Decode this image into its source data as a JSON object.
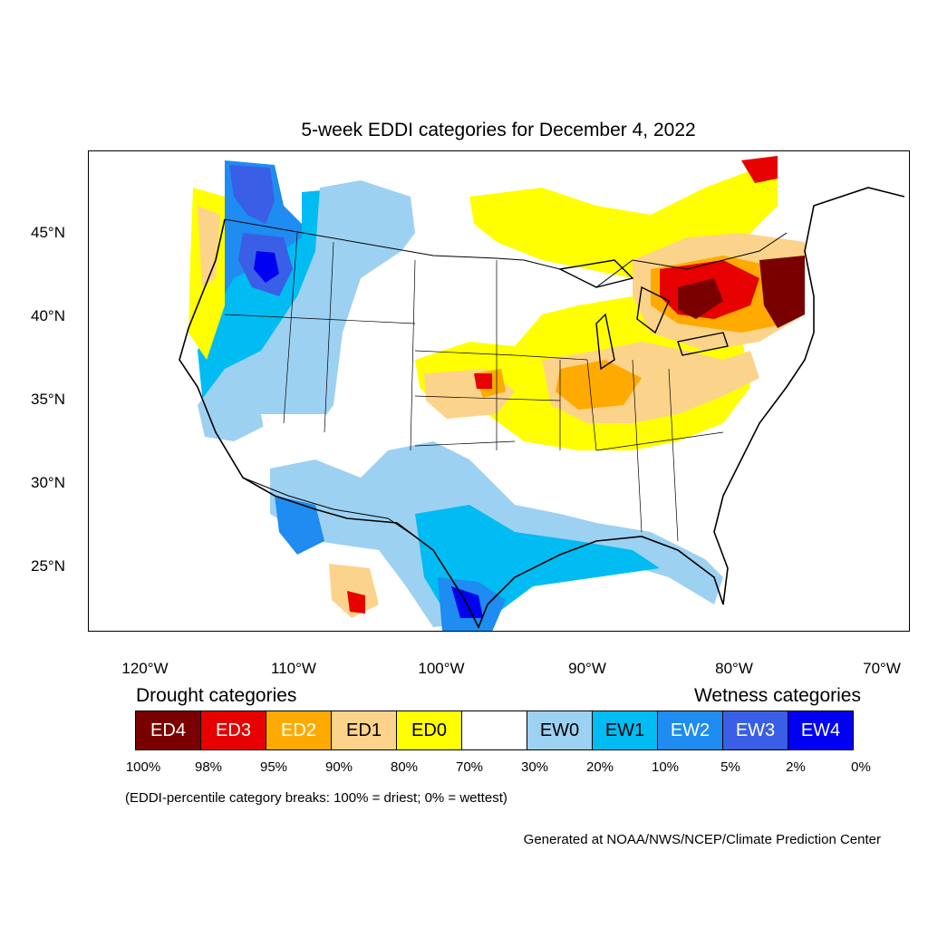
{
  "title": "5-week EDDI categories for December 4, 2022",
  "map": {
    "lat_ticks": [
      "45°N",
      "40°N",
      "35°N",
      "30°N",
      "25°N"
    ],
    "lon_ticks": [
      "120°W",
      "110°W",
      "100°W",
      "90°W",
      "80°W",
      "70°W"
    ]
  },
  "legend": {
    "drought_heading": "Drought categories",
    "wetness_heading": "Wetness categories",
    "categories": [
      {
        "label": "ED4",
        "color": "#7a0000",
        "text_color": "#ffffff"
      },
      {
        "label": "ED3",
        "color": "#e60000",
        "text_color": "#ffffff"
      },
      {
        "label": "ED2",
        "color": "#ffaa00",
        "text_color": "#ffffff"
      },
      {
        "label": "ED1",
        "color": "#fcd38a",
        "text_color": "#000000"
      },
      {
        "label": "ED0",
        "color": "#ffff00",
        "text_color": "#000000"
      },
      {
        "label": "",
        "color": "#ffffff",
        "text_color": "#000000"
      },
      {
        "label": "EW0",
        "color": "#9dd1f2",
        "text_color": "#000000"
      },
      {
        "label": "EW1",
        "color": "#00bcf2",
        "text_color": "#000000"
      },
      {
        "label": "EW2",
        "color": "#1e8cf0",
        "text_color": "#ffffff"
      },
      {
        "label": "EW3",
        "color": "#3a5ee6",
        "text_color": "#ffffff"
      },
      {
        "label": "EW4",
        "color": "#0000f2",
        "text_color": "#ffffff"
      }
    ],
    "percentiles": [
      "100%",
      "98%",
      "95%",
      "90%",
      "80%",
      "70%",
      "30%",
      "20%",
      "10%",
      "5%",
      "2%",
      "0%"
    ],
    "note": "(EDDI-percentile category breaks: 100% = driest; 0% = wettest)"
  },
  "credit": "Generated at NOAA/NWS/NCEP/Climate Prediction Center"
}
